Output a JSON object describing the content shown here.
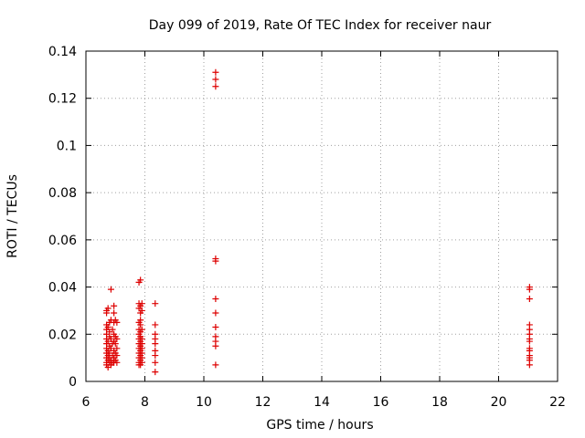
{
  "chart_data": {
    "type": "scatter",
    "title": "Day 099 of 2019, Rate Of TEC Index for receiver naur",
    "xlabel": "GPS time / hours",
    "ylabel": "ROTI / TECUs",
    "xlim": [
      6,
      22
    ],
    "ylim": [
      0,
      0.14
    ],
    "xticks": [
      6,
      8,
      10,
      12,
      14,
      16,
      18,
      20,
      22
    ],
    "yticks": [
      0,
      0.02,
      0.04,
      0.06,
      0.08,
      0.1,
      0.12,
      0.14
    ],
    "ytick_labels": [
      "0",
      "0.02",
      "0.04",
      "0.06",
      "0.08",
      "0.1",
      "0.12",
      "0.14"
    ],
    "grid": true,
    "marker": "+",
    "color": "#dd0000",
    "series": [
      {
        "points": [
          [
            6.7,
            0.03
          ],
          [
            6.7,
            0.029
          ],
          [
            6.7,
            0.024
          ],
          [
            6.7,
            0.022
          ],
          [
            6.7,
            0.02
          ],
          [
            6.7,
            0.018
          ],
          [
            6.7,
            0.016
          ],
          [
            6.7,
            0.014
          ],
          [
            6.7,
            0.012
          ],
          [
            6.7,
            0.01
          ],
          [
            6.7,
            0.008
          ],
          [
            6.7,
            0.007
          ],
          [
            6.75,
            0.031
          ],
          [
            6.75,
            0.023
          ],
          [
            6.75,
            0.017
          ],
          [
            6.75,
            0.013
          ],
          [
            6.75,
            0.011
          ],
          [
            6.75,
            0.009
          ],
          [
            6.75,
            0.006
          ],
          [
            6.8,
            0.025
          ],
          [
            6.8,
            0.021
          ],
          [
            6.8,
            0.019
          ],
          [
            6.8,
            0.015
          ],
          [
            6.8,
            0.012
          ],
          [
            6.8,
            0.01
          ],
          [
            6.8,
            0.008
          ],
          [
            6.85,
            0.039
          ],
          [
            6.85,
            0.026
          ],
          [
            6.85,
            0.018
          ],
          [
            6.85,
            0.014
          ],
          [
            6.85,
            0.009
          ],
          [
            6.85,
            0.007
          ],
          [
            6.9,
            0.022
          ],
          [
            6.9,
            0.016
          ],
          [
            6.9,
            0.011
          ],
          [
            6.9,
            0.008
          ],
          [
            6.95,
            0.032
          ],
          [
            6.95,
            0.029
          ],
          [
            6.95,
            0.025
          ],
          [
            6.95,
            0.02
          ],
          [
            6.95,
            0.017
          ],
          [
            6.95,
            0.013
          ],
          [
            6.95,
            0.01
          ],
          [
            6.95,
            0.008
          ],
          [
            7.0,
            0.026
          ],
          [
            7.0,
            0.019
          ],
          [
            7.0,
            0.016
          ],
          [
            7.0,
            0.012
          ],
          [
            7.0,
            0.009
          ],
          [
            7.05,
            0.025
          ],
          [
            7.05,
            0.018
          ],
          [
            7.05,
            0.014
          ],
          [
            7.05,
            0.011
          ],
          [
            7.05,
            0.008
          ],
          [
            7.8,
            0.042
          ],
          [
            7.8,
            0.033
          ],
          [
            7.8,
            0.031
          ],
          [
            7.8,
            0.025
          ],
          [
            7.8,
            0.022
          ],
          [
            7.8,
            0.02
          ],
          [
            7.8,
            0.018
          ],
          [
            7.8,
            0.016
          ],
          [
            7.8,
            0.014
          ],
          [
            7.8,
            0.012
          ],
          [
            7.8,
            0.01
          ],
          [
            7.8,
            0.008
          ],
          [
            7.8,
            0.007
          ],
          [
            7.85,
            0.043
          ],
          [
            7.85,
            0.032
          ],
          [
            7.85,
            0.029
          ],
          [
            7.85,
            0.026
          ],
          [
            7.85,
            0.024
          ],
          [
            7.85,
            0.021
          ],
          [
            7.85,
            0.019
          ],
          [
            7.85,
            0.017
          ],
          [
            7.85,
            0.015
          ],
          [
            7.85,
            0.013
          ],
          [
            7.85,
            0.011
          ],
          [
            7.85,
            0.009
          ],
          [
            7.85,
            0.007
          ],
          [
            7.9,
            0.033
          ],
          [
            7.9,
            0.03
          ],
          [
            7.9,
            0.022
          ],
          [
            7.9,
            0.018
          ],
          [
            7.9,
            0.016
          ],
          [
            7.9,
            0.014
          ],
          [
            7.9,
            0.012
          ],
          [
            7.9,
            0.01
          ],
          [
            7.9,
            0.008
          ],
          [
            8.35,
            0.033
          ],
          [
            8.35,
            0.024
          ],
          [
            8.35,
            0.02
          ],
          [
            8.35,
            0.018
          ],
          [
            8.35,
            0.016
          ],
          [
            8.35,
            0.013
          ],
          [
            8.35,
            0.011
          ],
          [
            8.35,
            0.008
          ],
          [
            8.35,
            0.004
          ],
          [
            10.4,
            0.131
          ],
          [
            10.4,
            0.128
          ],
          [
            10.4,
            0.125
          ],
          [
            10.4,
            0.052
          ],
          [
            10.4,
            0.051
          ],
          [
            10.4,
            0.035
          ],
          [
            10.4,
            0.029
          ],
          [
            10.4,
            0.023
          ],
          [
            10.4,
            0.019
          ],
          [
            10.4,
            0.017
          ],
          [
            10.4,
            0.015
          ],
          [
            10.4,
            0.007
          ],
          [
            21.05,
            0.04
          ],
          [
            21.05,
            0.039
          ],
          [
            21.05,
            0.035
          ],
          [
            21.05,
            0.024
          ],
          [
            21.05,
            0.022
          ],
          [
            21.05,
            0.02
          ],
          [
            21.05,
            0.018
          ],
          [
            21.05,
            0.017
          ],
          [
            21.05,
            0.014
          ],
          [
            21.05,
            0.013
          ],
          [
            21.05,
            0.011
          ],
          [
            21.05,
            0.01
          ],
          [
            21.05,
            0.009
          ],
          [
            21.05,
            0.007
          ]
        ]
      }
    ]
  }
}
